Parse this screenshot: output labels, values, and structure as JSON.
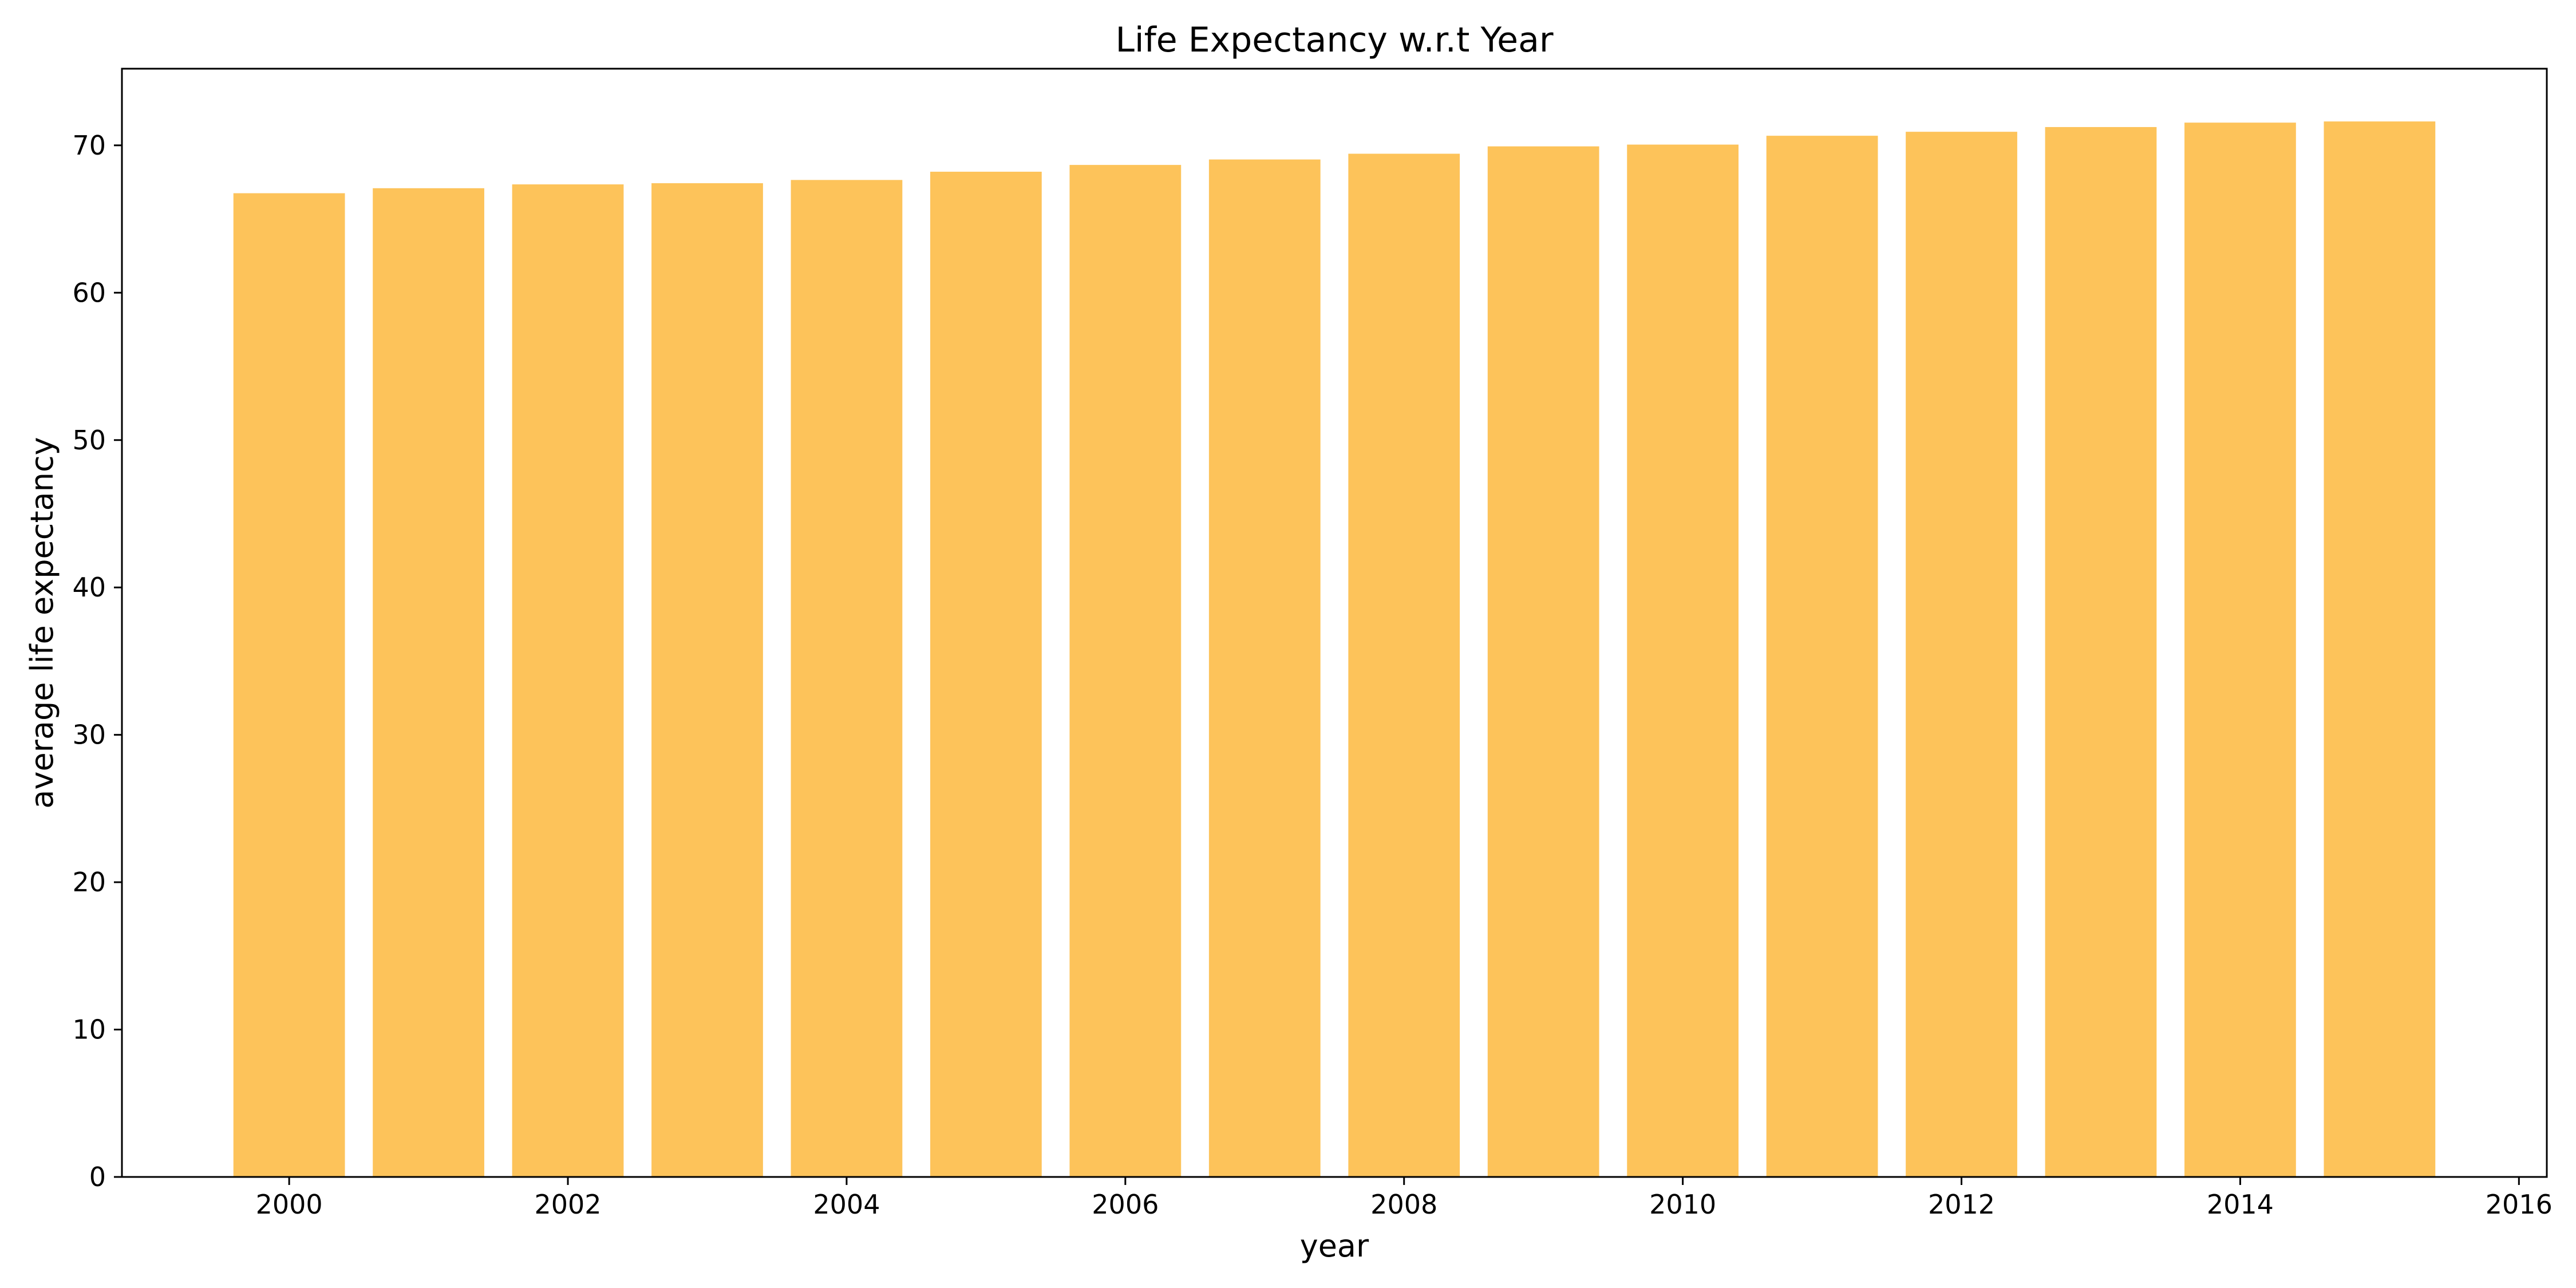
{
  "chart_data": {
    "type": "bar",
    "title": "Life Expectancy w.r.t Year",
    "xlabel": "year",
    "ylabel": "average life expectancy",
    "x": [
      2000,
      2001,
      2002,
      2003,
      2004,
      2005,
      2006,
      2007,
      2008,
      2009,
      2010,
      2011,
      2012,
      2013,
      2014,
      2015
    ],
    "values": [
      66.75,
      67.09,
      67.35,
      67.43,
      67.65,
      68.21,
      68.67,
      69.04,
      69.43,
      69.93,
      70.05,
      70.65,
      70.92,
      71.24,
      71.54,
      71.62
    ],
    "bar_color": "#fdc35a",
    "xlim": [
      1998.8,
      2016.2
    ],
    "ylim": [
      0,
      75.2
    ],
    "x_ticks": [
      2000,
      2002,
      2004,
      2006,
      2008,
      2010,
      2012,
      2014,
      2016
    ],
    "y_ticks": [
      0,
      10,
      20,
      30,
      40,
      50,
      60,
      70
    ],
    "grid": false,
    "legend": "none"
  }
}
